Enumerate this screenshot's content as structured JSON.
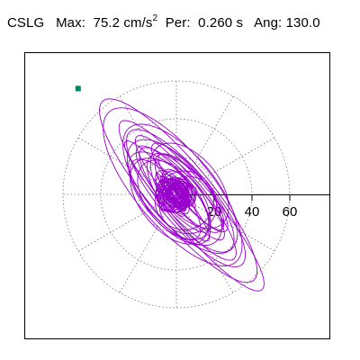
{
  "header": {
    "station": "CSLG",
    "max_label": "Max:",
    "max_value": "75.2",
    "max_unit": "cm/s",
    "max_unit_exp": "2",
    "per_label": "Per:",
    "per_value": "0.260 s",
    "ang_label": "Ang:",
    "ang_value": "130.0"
  },
  "chart_data": {
    "type": "polar-orbit",
    "radial_ticks": [
      "20",
      "40",
      "60"
    ],
    "radial_tick_values": [
      20,
      40,
      60
    ],
    "ring_values": [
      20,
      40,
      60
    ],
    "spoke_angles_deg": [
      0,
      30,
      60,
      90,
      120,
      150,
      180,
      210,
      240,
      270,
      300,
      330
    ],
    "grid": true,
    "trace_color": "#9900cc",
    "start_marker_color": "#008866",
    "max_amplitude": 75.2,
    "max_unit": "cm/s2",
    "period_s": 0.26,
    "angle_deg": 130.0,
    "start_point": [
      -52,
      56
    ]
  }
}
